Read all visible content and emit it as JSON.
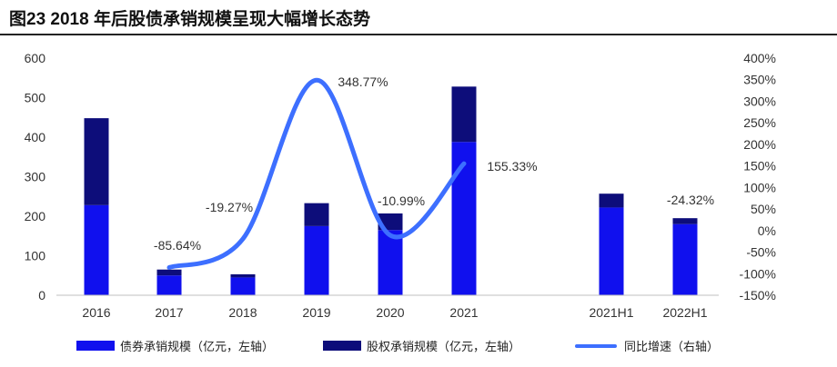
{
  "figure": {
    "title": "图23 2018 年后股债承销规模呈现大幅增长态势"
  },
  "colors": {
    "bond": "#1010ee",
    "equity": "#0d0d7a",
    "growth": "#3d6fff"
  },
  "chart_data": {
    "type": "bar",
    "stacked": true,
    "categories": [
      "2016",
      "2017",
      "2018",
      "2019",
      "2020",
      "2021",
      "",
      "2021H1",
      "2022H1"
    ],
    "series": [
      {
        "name": "债券承销规模（亿元，左轴）",
        "axis": "left",
        "values": [
          228,
          50,
          45,
          175,
          165,
          388,
          null,
          222,
          180
        ]
      },
      {
        "name": "股权承销规模（亿元，左轴）",
        "axis": "left",
        "values": [
          220,
          15,
          8,
          58,
          42,
          140,
          null,
          35,
          15
        ]
      },
      {
        "name": "同比增速（右轴）",
        "axis": "right",
        "kind": "line",
        "values": [
          null,
          -85.64,
          -19.27,
          348.77,
          -10.99,
          155.33,
          null,
          null,
          null
        ]
      }
    ],
    "data_labels": [
      {
        "category": "2017",
        "text": "-85.64%"
      },
      {
        "category": "2018",
        "text": "-19.27%"
      },
      {
        "category": "2019",
        "text": "348.77%"
      },
      {
        "category": "2020",
        "text": "-10.99%"
      },
      {
        "category": "2021",
        "text": "155.33%"
      },
      {
        "category": "2022H1",
        "text": "-24.32%"
      }
    ],
    "y_left": {
      "min": 0,
      "max": 600,
      "ticks": [
        "0",
        "100",
        "200",
        "300",
        "400",
        "500",
        "600"
      ]
    },
    "y_right": {
      "min": -150,
      "max": 400,
      "ticks": [
        "-150%",
        "-100%",
        "-50%",
        "0%",
        "50%",
        "100%",
        "150%",
        "200%",
        "250%",
        "300%",
        "350%",
        "400%"
      ]
    },
    "grid": false,
    "legend_position": "bottom"
  }
}
